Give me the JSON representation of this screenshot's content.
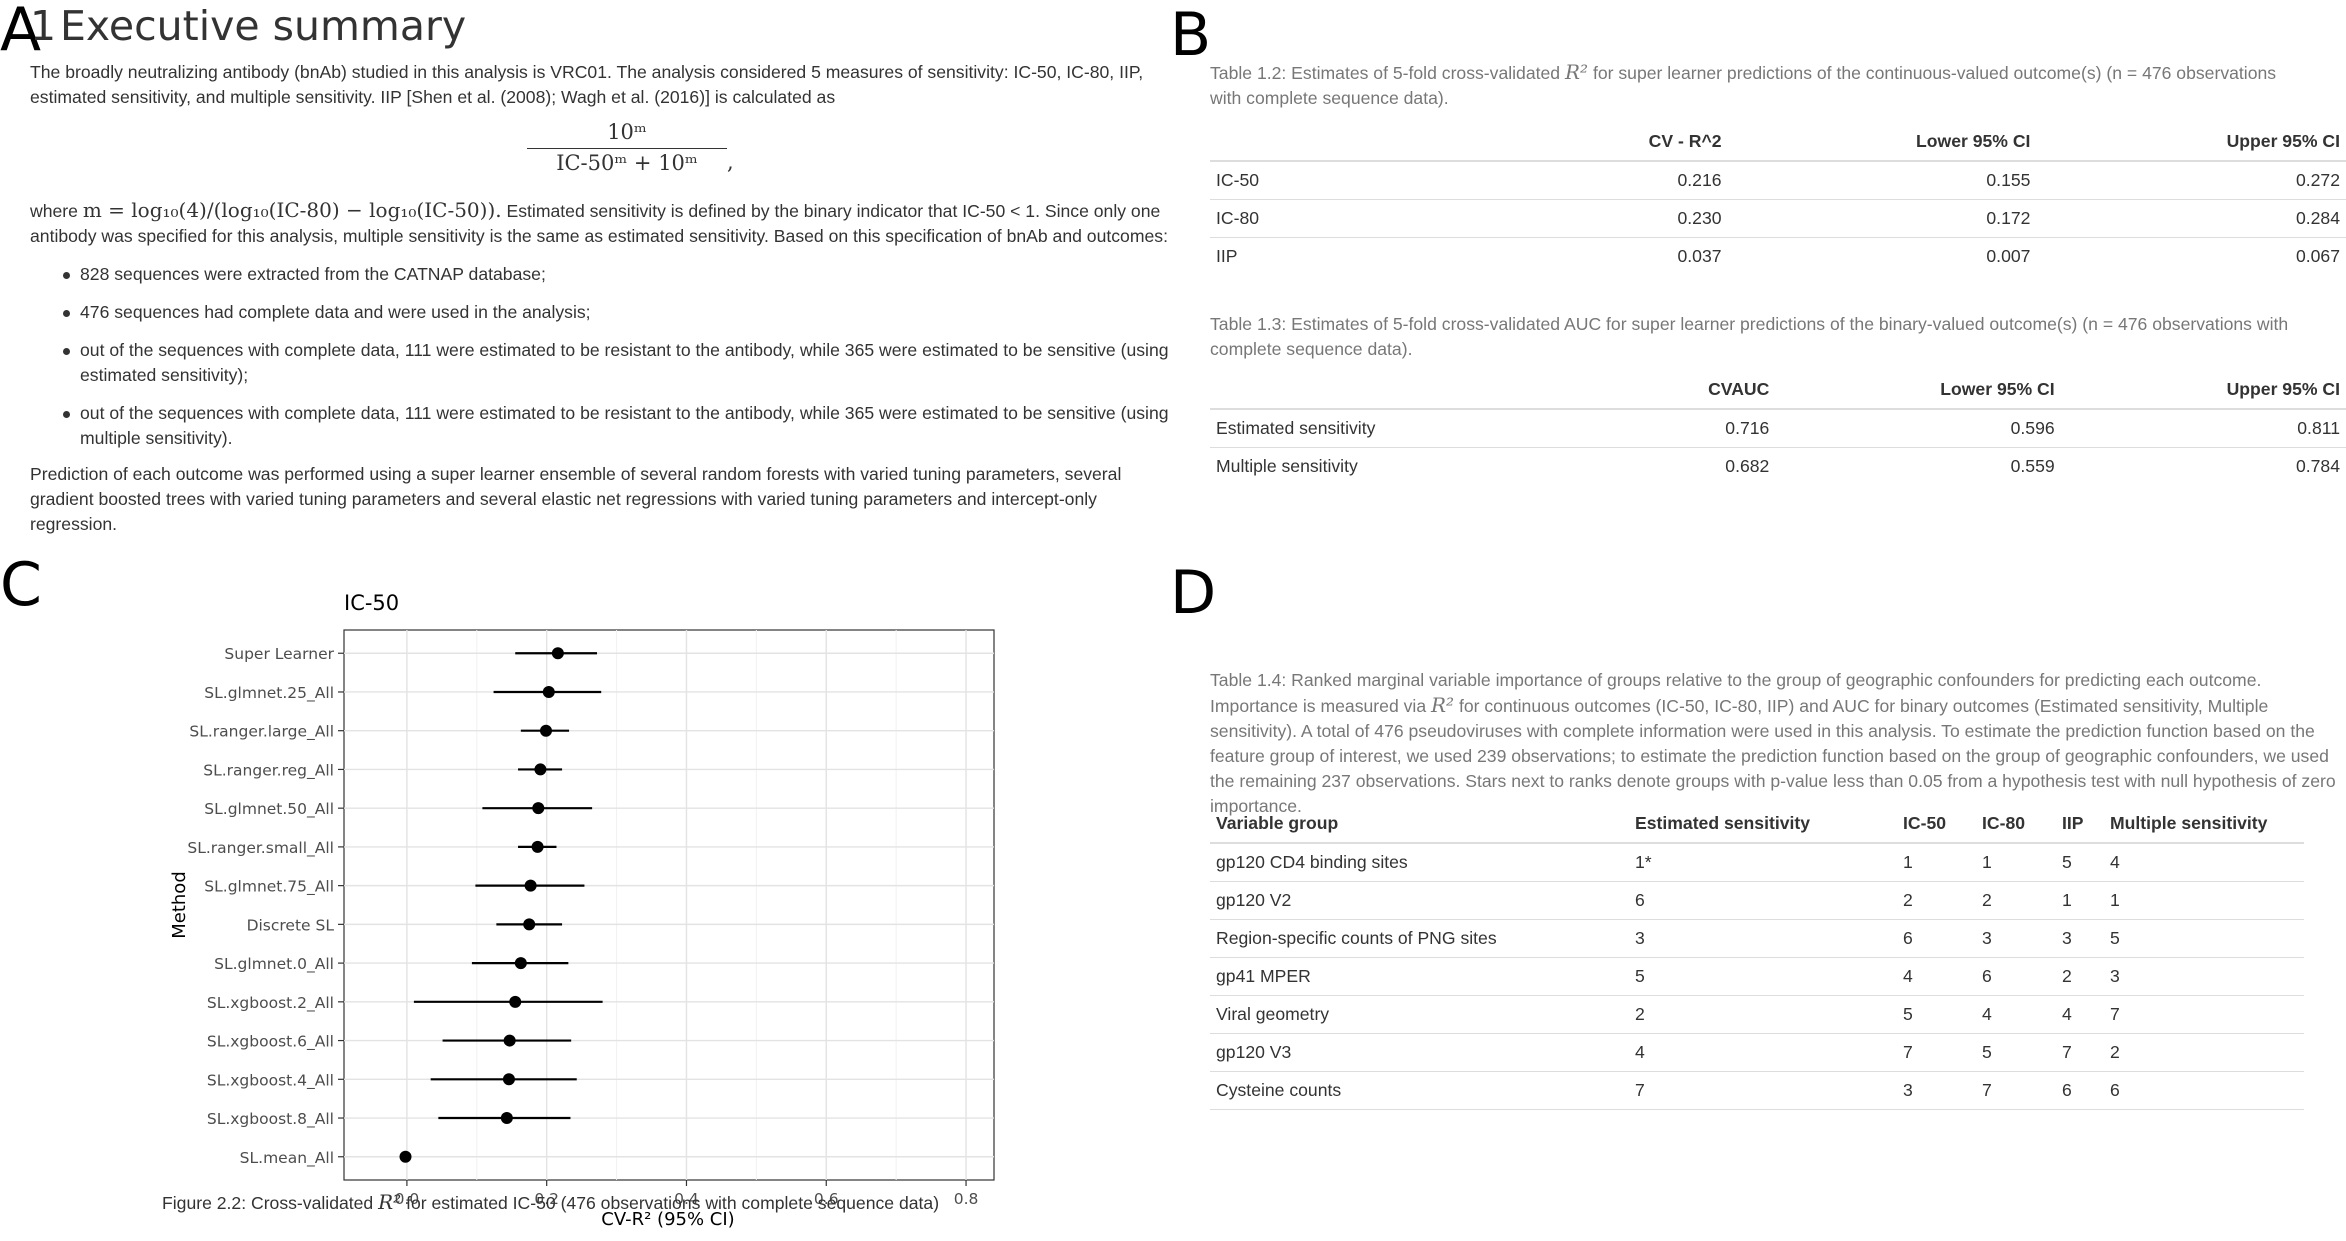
{
  "panel_letters": {
    "a": "A",
    "b": "B",
    "c": "C",
    "d": "D"
  },
  "summary": {
    "section_number": "1",
    "title": "Executive summary",
    "para1_line1": "The broadly neutralizing antibody (bnAb) studied in this analysis is VRC01. The analysis considered 5 measures of sensitivity: IC-50, IC-80, IIP,",
    "para1_line2": "estimated sensitivity, and multiple sensitivity. IIP [Shen et al. (2008); Wagh et al. (2016)] is calculated as",
    "formula_numerator": "10ᵐ",
    "formula_denominator": "IC-50ᵐ + 10ᵐ",
    "formula_suffix": ",",
    "para2_where": "where",
    "para2_math": "m = log₁₀(4)/(log₁₀(IC-80) − log₁₀(IC-50)).",
    "para2_line1_rest": " Estimated sensitivity is defined by the binary indicator that IC-50 < 1. Since only one",
    "para2_line2": "antibody was specified for this analysis, multiple sensitivity is the same as estimated sensitivity. Based on this specification of bnAb and outcomes:",
    "bullets": [
      "828 sequences were extracted from the CATNAP database;",
      "476 sequences had complete data and were used in the analysis;",
      "out of the sequences with complete data, 111 were estimated to be resistant to the antibody, while 365 were estimated to be sensitive (using estimated sensitivity);",
      "out of the sequences with complete data, 111 were estimated to be resistant to the antibody, while 365 were estimated to be sensitive (using multiple sensitivity)."
    ],
    "para3": "Prediction of each outcome was performed using a super learner ensemble of several random forests with varied tuning parameters, several gradient boosted trees with varied tuning parameters and several elastic net regressions with varied tuning parameters and intercept-only regression."
  },
  "table_1_2": {
    "caption_pre": "Table 1.2: Estimates of 5-fold cross-validated ",
    "caption_sym": "R²",
    "caption_post": " for super learner predictions of the continuous-valued outcome(s) (n = 476 observations with complete sequence data).",
    "headers": [
      "",
      "CV - R^2",
      "Lower 95% CI",
      "Upper 95% CI"
    ],
    "rows": [
      [
        "IC-50",
        "0.216",
        "0.155",
        "0.272"
      ],
      [
        "IC-80",
        "0.230",
        "0.172",
        "0.284"
      ],
      [
        "IIP",
        "0.037",
        "0.007",
        "0.067"
      ]
    ]
  },
  "table_1_3": {
    "caption": "Table 1.3: Estimates of 5-fold cross-validated AUC for super learner predictions of the binary-valued outcome(s) (n = 476 observations with complete sequence data).",
    "headers": [
      "",
      "CVAUC",
      "Lower 95% CI",
      "Upper 95% CI"
    ],
    "rows": [
      [
        "Estimated sensitivity",
        "0.716",
        "0.596",
        "0.811"
      ],
      [
        "Multiple sensitivity",
        "0.682",
        "0.559",
        "0.784"
      ]
    ]
  },
  "table_1_4": {
    "caption_pre": "Table 1.4: Ranked marginal variable importance of groups relative to the group of geographic confounders for predicting each outcome. Importance is measured via ",
    "caption_sym": "R²",
    "caption_post": " for continuous outcomes (IC-50, IC-80, IIP) and AUC for binary outcomes (Estimated sensitivity, Multiple sensitivity). A total of 476 pseudoviruses with complete information were used in this analysis. To estimate the prediction function based on the feature group of interest, we used 239 observations; to estimate the prediction function based on the group of geographic confounders, we used the remaining 237 observations. Stars next to ranks denote groups with p-value less than 0.05 from a hypothesis test with null hypothesis of zero importance.",
    "headers": [
      "Variable group",
      "Estimated sensitivity",
      "IC-50",
      "IC-80",
      "IIP",
      "Multiple sensitivity"
    ],
    "rows": [
      [
        "gp120 CD4 binding sites",
        "1*",
        "1",
        "1",
        "5",
        "4"
      ],
      [
        "gp120 V2",
        "6",
        "2",
        "2",
        "1",
        "1"
      ],
      [
        "Region-specific counts of PNG sites",
        "3",
        "6",
        "3",
        "3",
        "5"
      ],
      [
        "gp41 MPER",
        "5",
        "4",
        "6",
        "2",
        "3"
      ],
      [
        "Viral geometry",
        "2",
        "5",
        "4",
        "4",
        "7"
      ],
      [
        "gp120 V3",
        "4",
        "7",
        "5",
        "7",
        "2"
      ],
      [
        "Cysteine counts",
        "7",
        "3",
        "7",
        "6",
        "6"
      ]
    ]
  },
  "figure_2_2": {
    "caption_pre": "Figure 2.2: Cross-validated ",
    "caption_sym": "R²",
    "caption_post": " for estimated IC-50 (476 observations with complete sequence data)"
  },
  "chart_data": {
    "type": "scatter",
    "title": "IC-50",
    "xlabel": "CV-R² (95% CI)",
    "ylabel": "Method",
    "xlim": [
      -0.09,
      0.84
    ],
    "xticks": [
      "0.0",
      "0.2",
      "0.4",
      "0.6",
      "0.8"
    ],
    "xtick_values": [
      0.0,
      0.2,
      0.4,
      0.6,
      0.8
    ],
    "grid": true,
    "categories": [
      "Super Learner",
      "SL.glmnet.25_All",
      "SL.ranger.large_All",
      "SL.ranger.reg_All",
      "SL.glmnet.50_All",
      "SL.ranger.small_All",
      "SL.glmnet.75_All",
      "Discrete SL",
      "SL.glmnet.0_All",
      "SL.xgboost.2_All",
      "SL.xgboost.6_All",
      "SL.xgboost.4_All",
      "SL.xgboost.8_All",
      "SL.mean_All"
    ],
    "estimate": [
      0.216,
      0.203,
      0.199,
      0.191,
      0.188,
      0.187,
      0.177,
      0.175,
      0.163,
      0.155,
      0.147,
      0.146,
      0.143,
      -0.002
    ],
    "lower": [
      0.155,
      0.124,
      0.163,
      0.159,
      0.108,
      0.159,
      0.098,
      0.128,
      0.093,
      0.01,
      0.051,
      0.034,
      0.045,
      -0.002
    ],
    "upper": [
      0.272,
      0.278,
      0.232,
      0.222,
      0.265,
      0.214,
      0.254,
      0.222,
      0.231,
      0.28,
      0.235,
      0.243,
      0.234,
      -0.002
    ]
  }
}
